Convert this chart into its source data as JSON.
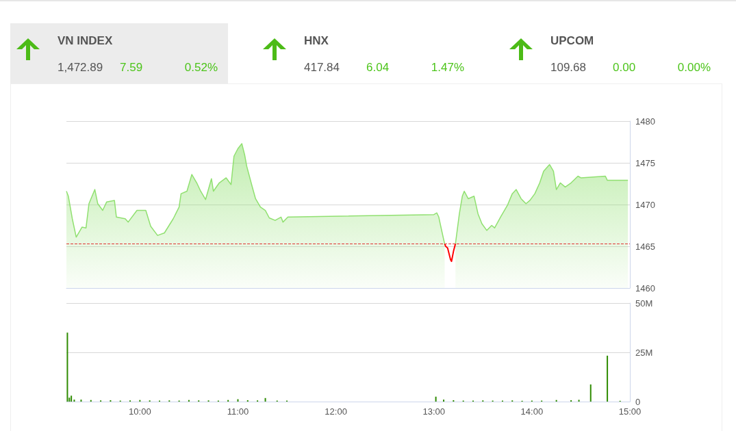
{
  "chart_data": [
    {
      "type": "other",
      "annotations": [
        "VN INDEX",
        "1,472.89",
        "7.59",
        "0.52%",
        "HNX",
        "417.84",
        "6.04",
        "1.47%",
        "UPCOM",
        "109.68",
        "0.00",
        "0.00%"
      ]
    },
    {
      "type": "area",
      "xlim": [
        9.25,
        15
      ],
      "ylim": [
        1460,
        1480
      ],
      "yticks": [
        1460,
        1465,
        1470,
        1475,
        1480
      ],
      "grid": "y",
      "tick_labels": "y",
      "marker": "none",
      "line_style": "solid",
      "ref_lines": [
        {
          "axis": "y",
          "value": 1465.3,
          "color": "#e03030",
          "line_style": "dashed"
        }
      ],
      "series": [
        {
          "color": "#90e070",
          "x": [
            9.25,
            9.27,
            9.31,
            9.35,
            9.41,
            9.45,
            9.48,
            9.54,
            9.57,
            9.62,
            9.66,
            9.74,
            9.76,
            9.85,
            9.88,
            9.97,
            10.06,
            10.11,
            10.18,
            10.25,
            10.34,
            10.4,
            10.42,
            10.48,
            10.53,
            10.58,
            10.62,
            10.67,
            10.73,
            10.75,
            10.81,
            10.88,
            10.93,
            10.96,
            11.0,
            11.04,
            11.07,
            11.09,
            11.14,
            11.18,
            11.23,
            11.28,
            11.32,
            11.38,
            11.44,
            11.46,
            11.51,
            13.0,
            13.03,
            13.05,
            13.07,
            13.1,
            13.11,
            13.16,
            13.22,
            13.26,
            13.29,
            13.31,
            13.35,
            13.41,
            13.45,
            13.49,
            13.54,
            13.59,
            13.62,
            13.68,
            13.75,
            13.8,
            13.84,
            13.89,
            13.94,
            13.98,
            14.03,
            14.08,
            14.12,
            14.18,
            14.22,
            14.25,
            14.29,
            14.34,
            14.4,
            14.47,
            14.5,
            14.75,
            14.77,
            14.98
          ],
          "values": [
            1471.6,
            1471.0,
            1468.3,
            1466.1,
            1467.3,
            1467.2,
            1470.1,
            1471.8,
            1470.1,
            1469.3,
            1470.3,
            1470.5,
            1468.5,
            1468.3,
            1467.9,
            1469.3,
            1469.3,
            1467.4,
            1466.3,
            1466.6,
            1468.3,
            1469.7,
            1471.3,
            1471.6,
            1473.6,
            1472.6,
            1471.6,
            1470.6,
            1473.1,
            1471.6,
            1472.6,
            1473.2,
            1472.4,
            1475.8,
            1476.7,
            1477.3,
            1475.9,
            1474.6,
            1472.4,
            1470.7,
            1469.7,
            1469.3,
            1468.4,
            1468.1,
            1468.5,
            1467.9,
            1468.5,
            1468.8,
            1469.0,
            1468.5,
            1467.4,
            1465.8,
            1465.3,
            null,
            1465.3,
            1468.9,
            1471.0,
            1471.6,
            1470.7,
            1471.0,
            1468.9,
            1467.7,
            1466.9,
            1467.5,
            1467.2,
            1468.5,
            1469.9,
            1471.3,
            1471.8,
            1470.7,
            1470.1,
            1470.5,
            1471.3,
            1472.6,
            1474.0,
            1474.8,
            1474.0,
            1471.8,
            1472.6,
            1472.1,
            1472.6,
            1473.4,
            1473.2,
            1473.4,
            1472.9,
            1472.9
          ]
        },
        {
          "type": "line",
          "color": "#ff0000",
          "x": [
            13.11,
            13.12,
            13.14,
            13.17,
            13.18,
            13.2,
            13.22
          ],
          "values": [
            1465.3,
            1465.0,
            1464.8,
            1463.4,
            1463.2,
            1464.4,
            1465.3
          ]
        }
      ]
    },
    {
      "type": "bar",
      "xlim": [
        9.25,
        15
      ],
      "xticks": [
        {
          "value": 10,
          "label": "10:00"
        },
        {
          "value": 11,
          "label": "11:00"
        },
        {
          "value": 12,
          "label": "12:00"
        },
        {
          "value": 13,
          "label": "13:00"
        },
        {
          "value": 14,
          "label": "14:00"
        },
        {
          "value": 15,
          "label": "15:00"
        }
      ],
      "ylim": [
        0,
        50
      ],
      "yticks": [
        {
          "value": 0,
          "label": "0"
        },
        {
          "value": 25,
          "label": "25M"
        },
        {
          "value": 50,
          "label": "50M"
        }
      ],
      "grid": "y",
      "series": [
        {
          "color": "#2e8b00",
          "x": [
            9.26,
            9.28,
            9.3,
            9.33,
            9.4,
            9.5,
            9.6,
            9.7,
            9.8,
            9.9,
            10.0,
            10.1,
            10.2,
            10.3,
            10.4,
            10.5,
            10.6,
            10.7,
            10.8,
            10.9,
            11.0,
            11.1,
            11.2,
            11.28,
            11.4,
            11.5,
            13.02,
            13.1,
            13.2,
            13.3,
            13.4,
            13.5,
            13.6,
            13.7,
            13.8,
            13.9,
            14.0,
            14.1,
            14.25,
            14.4,
            14.48,
            14.6,
            14.77,
            14.9
          ],
          "values": [
            35,
            2,
            3,
            1,
            1,
            0.8,
            0.6,
            0.7,
            0.5,
            0.6,
            0.8,
            0.6,
            0.5,
            0.6,
            0.5,
            0.8,
            0.6,
            0.6,
            0.5,
            0.8,
            1.2,
            0.7,
            0.6,
            1.8,
            0.5,
            0.5,
            2.5,
            1,
            0.7,
            0.5,
            0.5,
            0.6,
            0.5,
            0.5,
            0.6,
            0.4,
            0.5,
            0.5,
            0.8,
            0.7,
            0.9,
            8.7,
            23.3,
            0.4
          ]
        }
      ]
    }
  ]
}
